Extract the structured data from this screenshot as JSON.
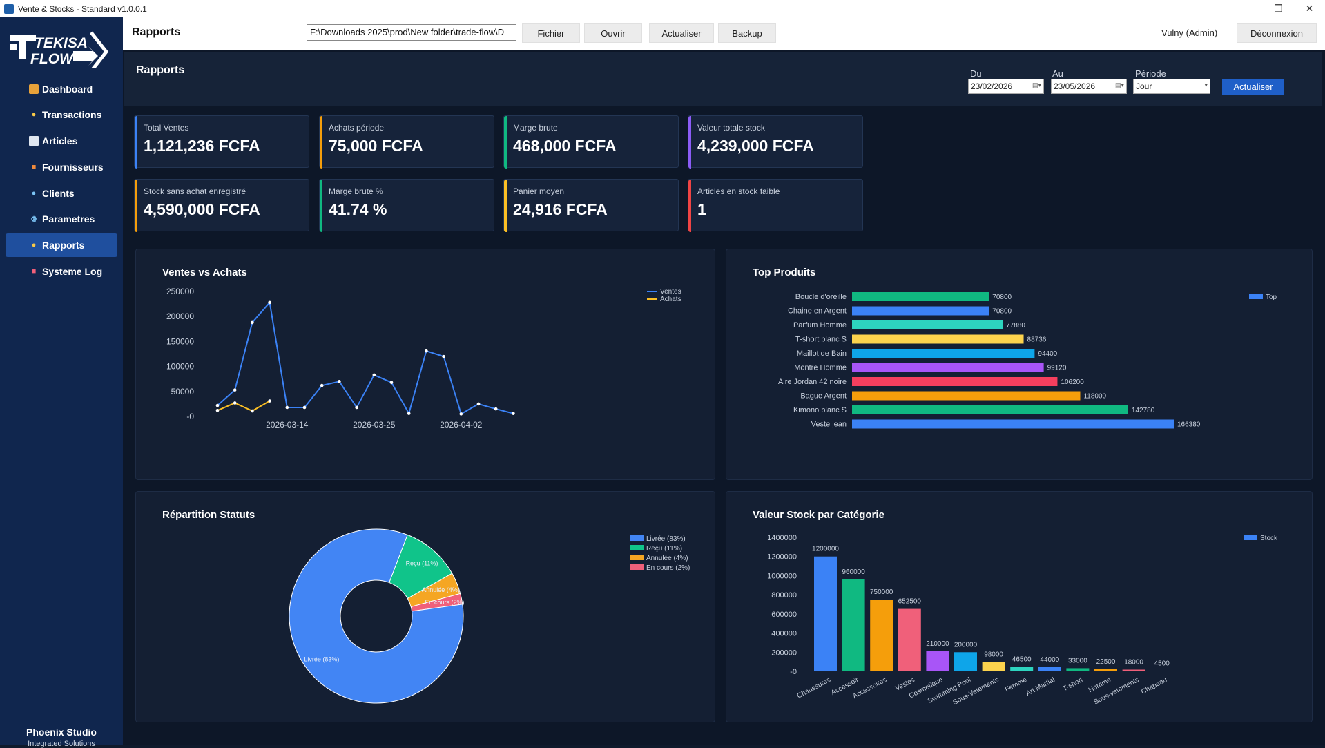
{
  "window": {
    "title": "Vente & Stocks - Standard v1.0.0.1"
  },
  "sidebar": {
    "logo_text": "TEKISA FLOW",
    "items": [
      {
        "label": "Dashboard",
        "icon": "chart-icon"
      },
      {
        "label": "Transactions",
        "icon": "transaction-icon"
      },
      {
        "label": "Articles",
        "icon": "article-icon"
      },
      {
        "label": "Fournisseurs",
        "icon": "supplier-icon"
      },
      {
        "label": "Clients",
        "icon": "clients-icon"
      },
      {
        "label": "Parametres",
        "icon": "gear-icon"
      },
      {
        "label": "Rapports",
        "icon": "reports-icon"
      },
      {
        "label": "Systeme Log",
        "icon": "log-icon"
      }
    ],
    "active": "Rapports",
    "footer": {
      "name": "Phoenix Studio",
      "sub": "Integrated Solutions"
    }
  },
  "topbar": {
    "title": "Rapports",
    "path": "F:\\Downloads 2025\\prod\\New folder\\trade-flow\\D",
    "buttons": [
      "Fichier",
      "Ouvrir",
      "Actualiser",
      "Backup"
    ],
    "user": "Vulny (Admin)",
    "logout": "Déconnexion"
  },
  "filters": {
    "title": "Rapports",
    "du_label": "Du",
    "du_value": "23/02/2026",
    "au_label": "Au",
    "au_value": "23/05/2026",
    "periode_label": "Période",
    "periode_value": "Jour",
    "refresh": "Actualiser"
  },
  "kpis": [
    {
      "label": "Total Ventes",
      "value": "1,121,236 FCFA",
      "color": "#3b82f6"
    },
    {
      "label": "Achats période",
      "value": "75,000 FCFA",
      "color": "#f59e0b"
    },
    {
      "label": "Marge brute",
      "value": "468,000 FCFA",
      "color": "#10b981"
    },
    {
      "label": "Valeur totale stock",
      "value": "4,239,000 FCFA",
      "color": "#8b5cf6"
    },
    {
      "label": "Stock sans achat enregistré",
      "value": "4,590,000 FCFA",
      "color": "#f59e0b"
    },
    {
      "label": "Marge brute %",
      "value": "41.74 %",
      "color": "#10b981"
    },
    {
      "label": "Panier moyen",
      "value": "24,916 FCFA",
      "color": "#fbbf24"
    },
    {
      "label": "Articles en stock faible",
      "value": "1",
      "color": "#ef4444"
    }
  ],
  "chart_data": [
    {
      "type": "line",
      "title": "Ventes vs Achats",
      "ylim": [
        0,
        250000
      ],
      "yticks": [
        "250000",
        "200000",
        "150000",
        "100000",
        "50000",
        "-0"
      ],
      "xticks": [
        {
          "i": 4,
          "label": "2026-03-14"
        },
        {
          "i": 9,
          "label": "2026-03-25"
        },
        {
          "i": 14,
          "label": "2026-04-02"
        }
      ],
      "series": [
        {
          "name": "Ventes",
          "color": "#3b82f6",
          "values": [
            22000,
            53000,
            188000,
            228000,
            18000,
            18000,
            62000,
            70000,
            18000,
            83000,
            68000,
            6000,
            131000,
            120000,
            5000,
            25000,
            15000,
            6000
          ]
        },
        {
          "name": "Achats",
          "color": "#fbbf24",
          "values": [
            12000,
            27000,
            11000,
            31000
          ]
        }
      ],
      "legend_position": "top-right"
    },
    {
      "type": "bar",
      "orientation": "horizontal",
      "title": "Top Produits",
      "legend": "Top",
      "categories": [
        "Boucle d'oreille",
        "Chaine en Argent",
        "Parfum Homme",
        "T-short blanc S",
        "Maillot de Bain",
        "Montre Homme",
        "Aire Jordan 42 noire",
        "Bague Argent",
        "Kimono blanc S",
        "Veste jean"
      ],
      "values": [
        70800,
        70800,
        77880,
        88736,
        94400,
        99120,
        106200,
        118000,
        142780,
        166380
      ],
      "colors": [
        "#10b981",
        "#3b82f6",
        "#2dd4bf",
        "#fcd34d",
        "#0ea5e9",
        "#a855f7",
        "#f43f5e",
        "#f59e0b",
        "#10b981",
        "#3b82f6"
      ]
    },
    {
      "type": "pie",
      "title": "Répartition Statuts",
      "slices": [
        {
          "label": "Livrée",
          "legend": "Livrée (83%)",
          "value": 83,
          "color": "#4285f4"
        },
        {
          "label": "Reçu",
          "legend": "Reçu (11%)",
          "value": 11,
          "color": "#10c48a"
        },
        {
          "label": "Annulée",
          "legend": "Annulée (4%)",
          "value": 4,
          "color": "#f5a623"
        },
        {
          "label": "En cours",
          "legend": "En cours (2%)",
          "value": 2,
          "color": "#f0607a"
        }
      ]
    },
    {
      "type": "bar",
      "title": "Valeur Stock par Catégorie",
      "legend": "Stock",
      "ylim": [
        0,
        1400000
      ],
      "yticks": [
        "1400000",
        "1200000",
        "1000000",
        "800000",
        "600000",
        "400000",
        "200000",
        "-0"
      ],
      "categories": [
        "Chaussures",
        "Accessoir",
        "Accessoires",
        "Vestes",
        "Cosmetique",
        "Swimming Pool",
        "Sous-Vetements",
        "Femme",
        "Art Martial",
        "T-short",
        "Homme",
        "Sous-vetements",
        "Chapeau"
      ],
      "values": [
        1200000,
        960000,
        750000,
        652500,
        210000,
        200000,
        98000,
        46500,
        44000,
        33000,
        22500,
        18000,
        4500
      ],
      "colors": [
        "#3b82f6",
        "#10b981",
        "#f59e0b",
        "#f0607a",
        "#a855f7",
        "#0ea5e9",
        "#fcd34d",
        "#2dd4bf",
        "#3b82f6",
        "#10b981",
        "#f59e0b",
        "#f0607a",
        "#a855f7"
      ]
    }
  ]
}
